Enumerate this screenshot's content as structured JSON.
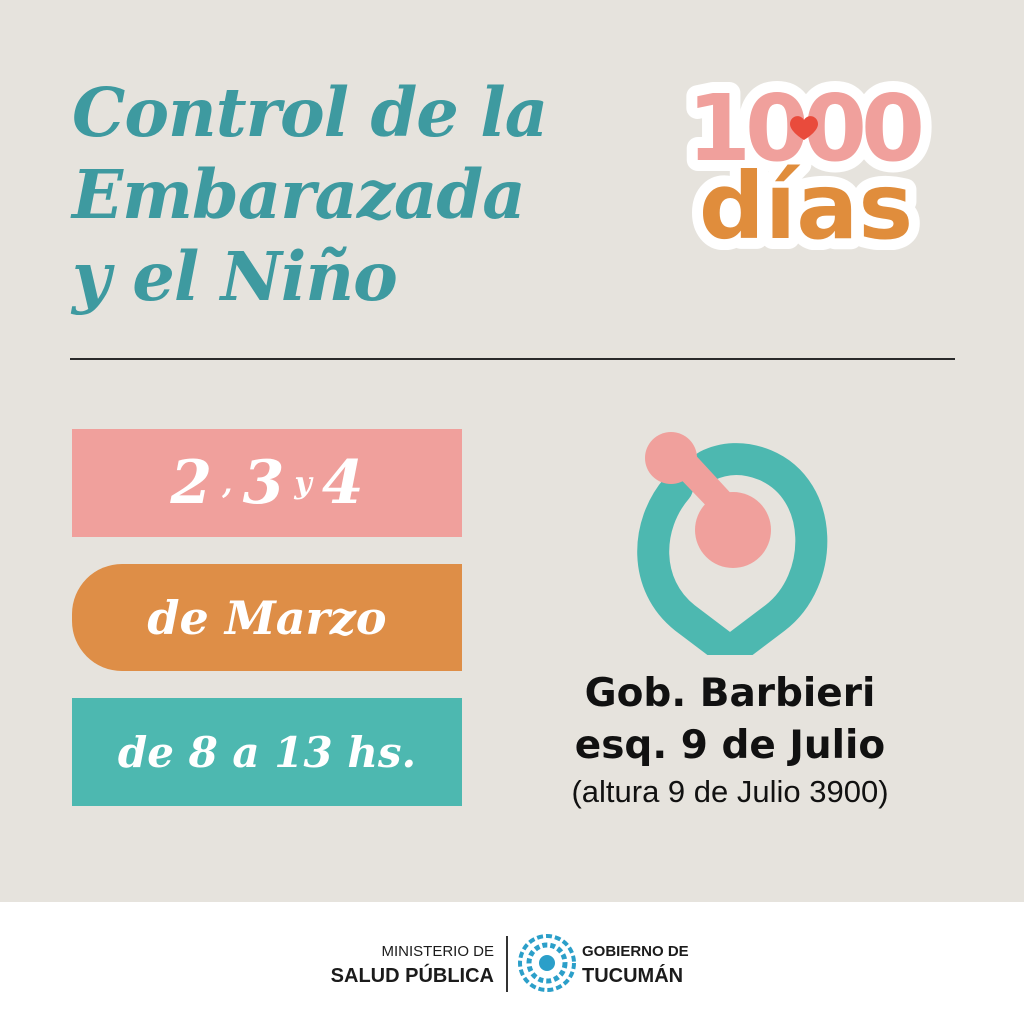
{
  "title": {
    "line1": "Control de la",
    "line2": "Embarazada",
    "line3": "y el Niño"
  },
  "logo": {
    "number": "1000",
    "word": "días"
  },
  "schedule": {
    "day1": "2",
    "comma": ",",
    "day2": "3",
    "conj": "y",
    "day3": "4",
    "month": "de Marzo",
    "hours": "de 8 a 13 hs."
  },
  "location": {
    "line1": "Gob. Barbieri",
    "line2": "esq. 9 de Julio",
    "line3": "(altura 9 de Julio 3900)"
  },
  "footer": {
    "ministry_small": "MINISTERIO DE",
    "ministry_big": "SALUD PÚBLICA",
    "gov_small": "GOBIERNO DE",
    "gov_big": "TUCUMÁN"
  },
  "colors": {
    "background": "#e6e3dd",
    "teal_title": "#3e9aa0",
    "pink": "#f0a09c",
    "orange": "#de8e47",
    "teal": "#4db8b0",
    "heart": "#e94b3c"
  }
}
